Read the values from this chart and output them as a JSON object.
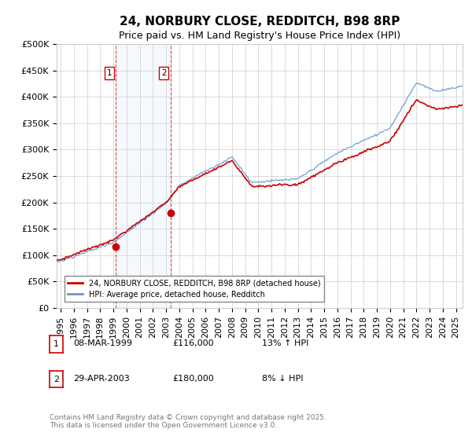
{
  "title": "24, NORBURY CLOSE, REDDITCH, B98 8RP",
  "subtitle": "Price paid vs. HM Land Registry's House Price Index (HPI)",
  "ylim": [
    0,
    500000
  ],
  "yticks": [
    0,
    50000,
    100000,
    150000,
    200000,
    250000,
    300000,
    350000,
    400000,
    450000,
    500000
  ],
  "ytick_labels": [
    "£0",
    "£50K",
    "£100K",
    "£150K",
    "£200K",
    "£250K",
    "£300K",
    "£350K",
    "£400K",
    "£450K",
    "£500K"
  ],
  "xlim_start": 1994.7,
  "xlim_end": 2025.5,
  "xticks": [
    1995,
    1996,
    1997,
    1998,
    1999,
    2000,
    2001,
    2002,
    2003,
    2004,
    2005,
    2006,
    2007,
    2008,
    2009,
    2010,
    2011,
    2012,
    2013,
    2014,
    2015,
    2016,
    2017,
    2018,
    2019,
    2020,
    2021,
    2022,
    2023,
    2024,
    2025
  ],
  "sale1_x": 1999.18,
  "sale1_y": 116000,
  "sale1_label": "1",
  "sale1_date": "08-MAR-1999",
  "sale1_price": "£116,000",
  "sale1_hpi": "13% ↑ HPI",
  "sale2_x": 2003.33,
  "sale2_y": 180000,
  "sale2_label": "2",
  "sale2_date": "29-APR-2003",
  "sale2_price": "£180,000",
  "sale2_hpi": "8% ↓ HPI",
  "red_line_color": "#cc0000",
  "blue_line_color": "#6699cc",
  "shade_color": "#ccddf0",
  "grid_color": "#cccccc",
  "background_color": "#ffffff",
  "title_fontsize": 11,
  "subtitle_fontsize": 9,
  "tick_fontsize": 8,
  "legend_label_red": "24, NORBURY CLOSE, REDDITCH, B98 8RP (detached house)",
  "legend_label_blue": "HPI: Average price, detached house, Redditch",
  "footnote": "Contains HM Land Registry data © Crown copyright and database right 2025.\nThis data is licensed under the Open Government Licence v3.0."
}
